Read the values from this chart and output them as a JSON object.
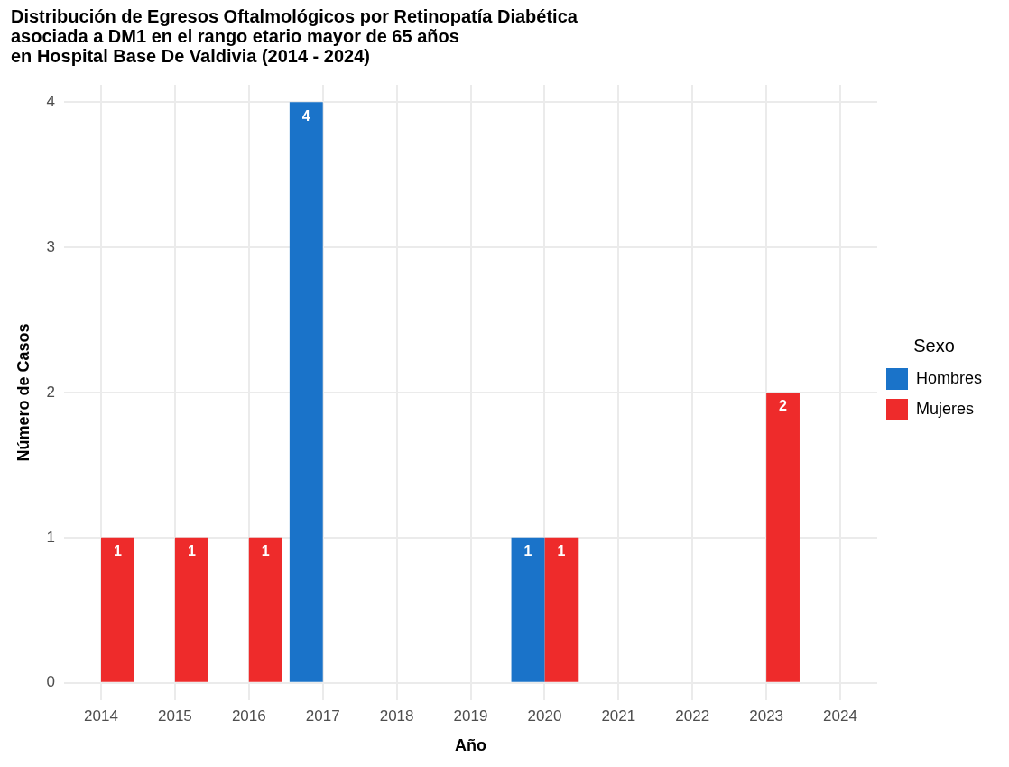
{
  "chart_data": {
    "type": "bar",
    "title": "Distribución de Egresos Oftalmológicos por Retinopatía Diabética\nasociada a DM1 en el rango etario mayor de 65 años\nen Hospital Base De Valdivia (2014 - 2024)",
    "xlabel": "Año",
    "ylabel": "Número de Casos",
    "legend_title": "Sexo",
    "categories": [
      "2014",
      "2015",
      "2016",
      "2017",
      "2018",
      "2019",
      "2020",
      "2021",
      "2022",
      "2023",
      "2024"
    ],
    "series": [
      {
        "name": "Hombres",
        "color": "#1a73c9",
        "values": [
          null,
          null,
          null,
          4,
          null,
          null,
          1,
          null,
          null,
          null,
          null
        ]
      },
      {
        "name": "Mujeres",
        "color": "#ee2b2b",
        "values": [
          1,
          1,
          1,
          null,
          null,
          null,
          1,
          null,
          null,
          2,
          null
        ]
      }
    ],
    "ylim": [
      -0.12,
      4.12
    ],
    "yticks": [
      0,
      1,
      2,
      3,
      4
    ],
    "grid": true,
    "legend": "right",
    "data_labels": true
  }
}
